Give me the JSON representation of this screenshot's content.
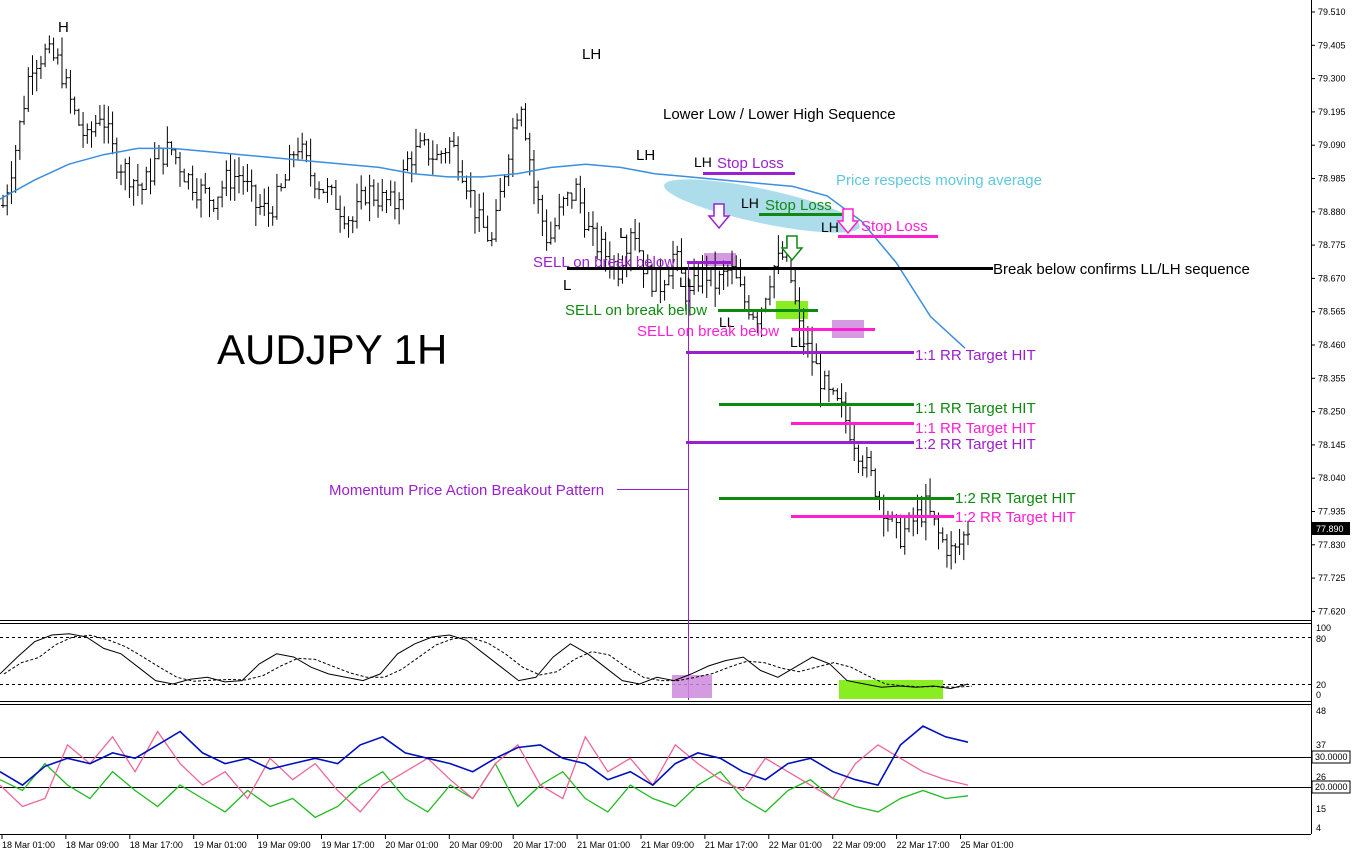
{
  "chart_data": {
    "type": "ohlc",
    "title": "AUDJPY 1H",
    "y_ticks": [
      "79.510",
      "79.405",
      "79.300",
      "79.195",
      "79.090",
      "78.985",
      "78.880",
      "78.775",
      "78.670",
      "78.565",
      "78.460",
      "78.355",
      "78.250",
      "78.145",
      "78.040",
      "77.935",
      "77.830",
      "77.725",
      "77.620"
    ],
    "ylim": [
      77.62,
      79.51
    ],
    "current_price": "77.890",
    "x_ticks": [
      "18 Mar 01:00",
      "18 Mar 09:00",
      "18 Mar 17:00",
      "19 Mar 01:00",
      "19 Mar 09:00",
      "19 Mar 17:00",
      "20 Mar 01:00",
      "20 Mar 09:00",
      "20 Mar 17:00",
      "21 Mar 01:00",
      "21 Mar 09:00",
      "21 Mar 17:00",
      "22 Mar 01:00",
      "22 Mar 09:00",
      "22 Mar 17:00",
      "25 Mar 01:00"
    ],
    "price_closes": [
      78.9,
      79.1,
      79.35,
      79.38,
      79.35,
      79.2,
      79.1,
      79.2,
      79.05,
      79.0,
      78.95,
      79.05,
      79.08,
      79.0,
      78.95,
      78.92,
      78.98,
      79.0,
      78.9,
      78.88,
      78.95,
      79.1,
      79.0,
      78.95,
      78.9,
      78.85,
      78.95,
      78.92,
      78.9,
      79.05,
      79.08,
      79.05,
      79.1,
      79.0,
      78.85,
      78.78,
      79.05,
      79.25,
      78.95,
      78.78,
      78.9,
      78.95,
      78.8,
      78.75,
      78.7,
      78.85,
      78.68,
      78.65,
      78.75,
      78.6,
      78.7,
      78.65,
      78.7,
      78.6,
      78.55,
      78.7,
      78.75,
      78.5,
      78.4,
      78.3,
      78.25,
      78.15,
      78.05,
      77.95,
      77.85,
      77.9,
      77.95,
      77.85,
      77.8,
      77.88
    ],
    "ma_line": [
      78.92,
      78.98,
      79.03,
      79.06,
      79.08,
      79.08,
      79.07,
      79.06,
      79.05,
      79.04,
      79.03,
      79.02,
      79.0,
      78.99,
      78.99,
      79.0,
      79.02,
      79.03,
      79.02,
      79.0,
      78.99,
      78.98,
      78.97,
      78.96,
      78.93,
      78.85,
      78.72,
      78.55,
      78.45
    ],
    "labels": {
      "h": "H",
      "lh_top": "LH",
      "lh_1": "LH",
      "lh_2": "LH",
      "lh_3": "LH",
      "lh_4": "LH",
      "l_1": "L",
      "l_2": "L",
      "ll_1": "LL",
      "ll_2": "LL",
      "ll_3": "LL",
      "sequence": "Lower Low / Lower High Sequence",
      "respects_ma": "Price respects moving average",
      "stop_loss_purple": "Stop Loss",
      "stop_loss_green": "Stop Loss",
      "stop_loss_pink": "Stop Loss",
      "sell_purple": "SELL on break below",
      "sell_green": "SELL on break below",
      "sell_pink": "SELL on break below",
      "break_confirms": "Break below confirms LL/LH sequence",
      "target_purple_1": "1:1 RR Target HIT",
      "target_green_1": "1:1 RR Target HIT",
      "target_pink_1": "1:1 RR Target HIT",
      "target_purple_2": "1:2 RR Target HIT",
      "target_green_2": "1:2 RR Target HIT",
      "target_pink_2": "1:2 RR Target HIT",
      "pattern": "Momentum Price Action Breakout Pattern"
    },
    "stochastic": {
      "ticks": [
        "100",
        "80",
        "20",
        "0"
      ],
      "values": [
        30,
        55,
        78,
        88,
        90,
        85,
        68,
        60,
        40,
        20,
        15,
        22,
        25,
        18,
        20,
        45,
        60,
        55,
        40,
        30,
        25,
        20,
        30,
        60,
        75,
        85,
        88,
        80,
        60,
        40,
        20,
        25,
        55,
        75,
        60,
        40,
        20,
        15,
        25,
        20,
        30,
        42,
        50,
        55,
        35,
        25,
        40,
        55,
        45,
        20,
        15,
        10,
        12,
        10,
        12,
        8,
        15
      ]
    },
    "adx": {
      "ticks": [
        "48",
        "37",
        "26",
        "15",
        "4"
      ],
      "level_labels": [
        "30.0000",
        "20.0000"
      ],
      "adx_values": [
        25,
        20,
        27,
        30,
        28,
        32,
        30,
        35,
        40,
        32,
        28,
        30,
        26,
        28,
        30,
        28,
        35,
        38,
        32,
        30,
        28,
        25,
        30,
        34,
        35,
        30,
        28,
        22,
        25,
        20,
        28,
        32,
        30,
        25,
        22,
        28,
        30,
        25,
        22,
        20,
        35,
        42,
        38,
        36
      ],
      "plus_di_values": [
        20,
        12,
        15,
        35,
        28,
        38,
        25,
        40,
        28,
        20,
        25,
        15,
        30,
        22,
        28,
        18,
        10,
        20,
        25,
        30,
        22,
        15,
        28,
        35,
        20,
        15,
        38,
        25,
        30,
        20,
        35,
        28,
        22,
        18,
        30,
        25,
        20,
        15,
        28,
        35,
        30,
        25,
        22,
        20
      ],
      "minus_di_values": [
        22,
        18,
        28,
        20,
        15,
        25,
        18,
        12,
        20,
        15,
        10,
        18,
        12,
        15,
        8,
        12,
        20,
        25,
        15,
        10,
        20,
        15,
        28,
        12,
        20,
        25,
        15,
        10,
        20,
        15,
        12,
        20,
        25,
        15,
        10,
        18,
        22,
        15,
        12,
        10,
        15,
        18,
        15,
        16
      ]
    }
  },
  "colors": {
    "purple": "#9a1fcf",
    "green": "#0f8a0f",
    "pink": "#ff1fd0",
    "ma": "#3a8fe0",
    "ellipse": "#9fd7e8",
    "zone_purple": "#cc88dd",
    "zone_green": "#88ee22",
    "adx_blue": "#0010c0",
    "di_green": "#22bb22",
    "di_pink": "#ee6699"
  }
}
